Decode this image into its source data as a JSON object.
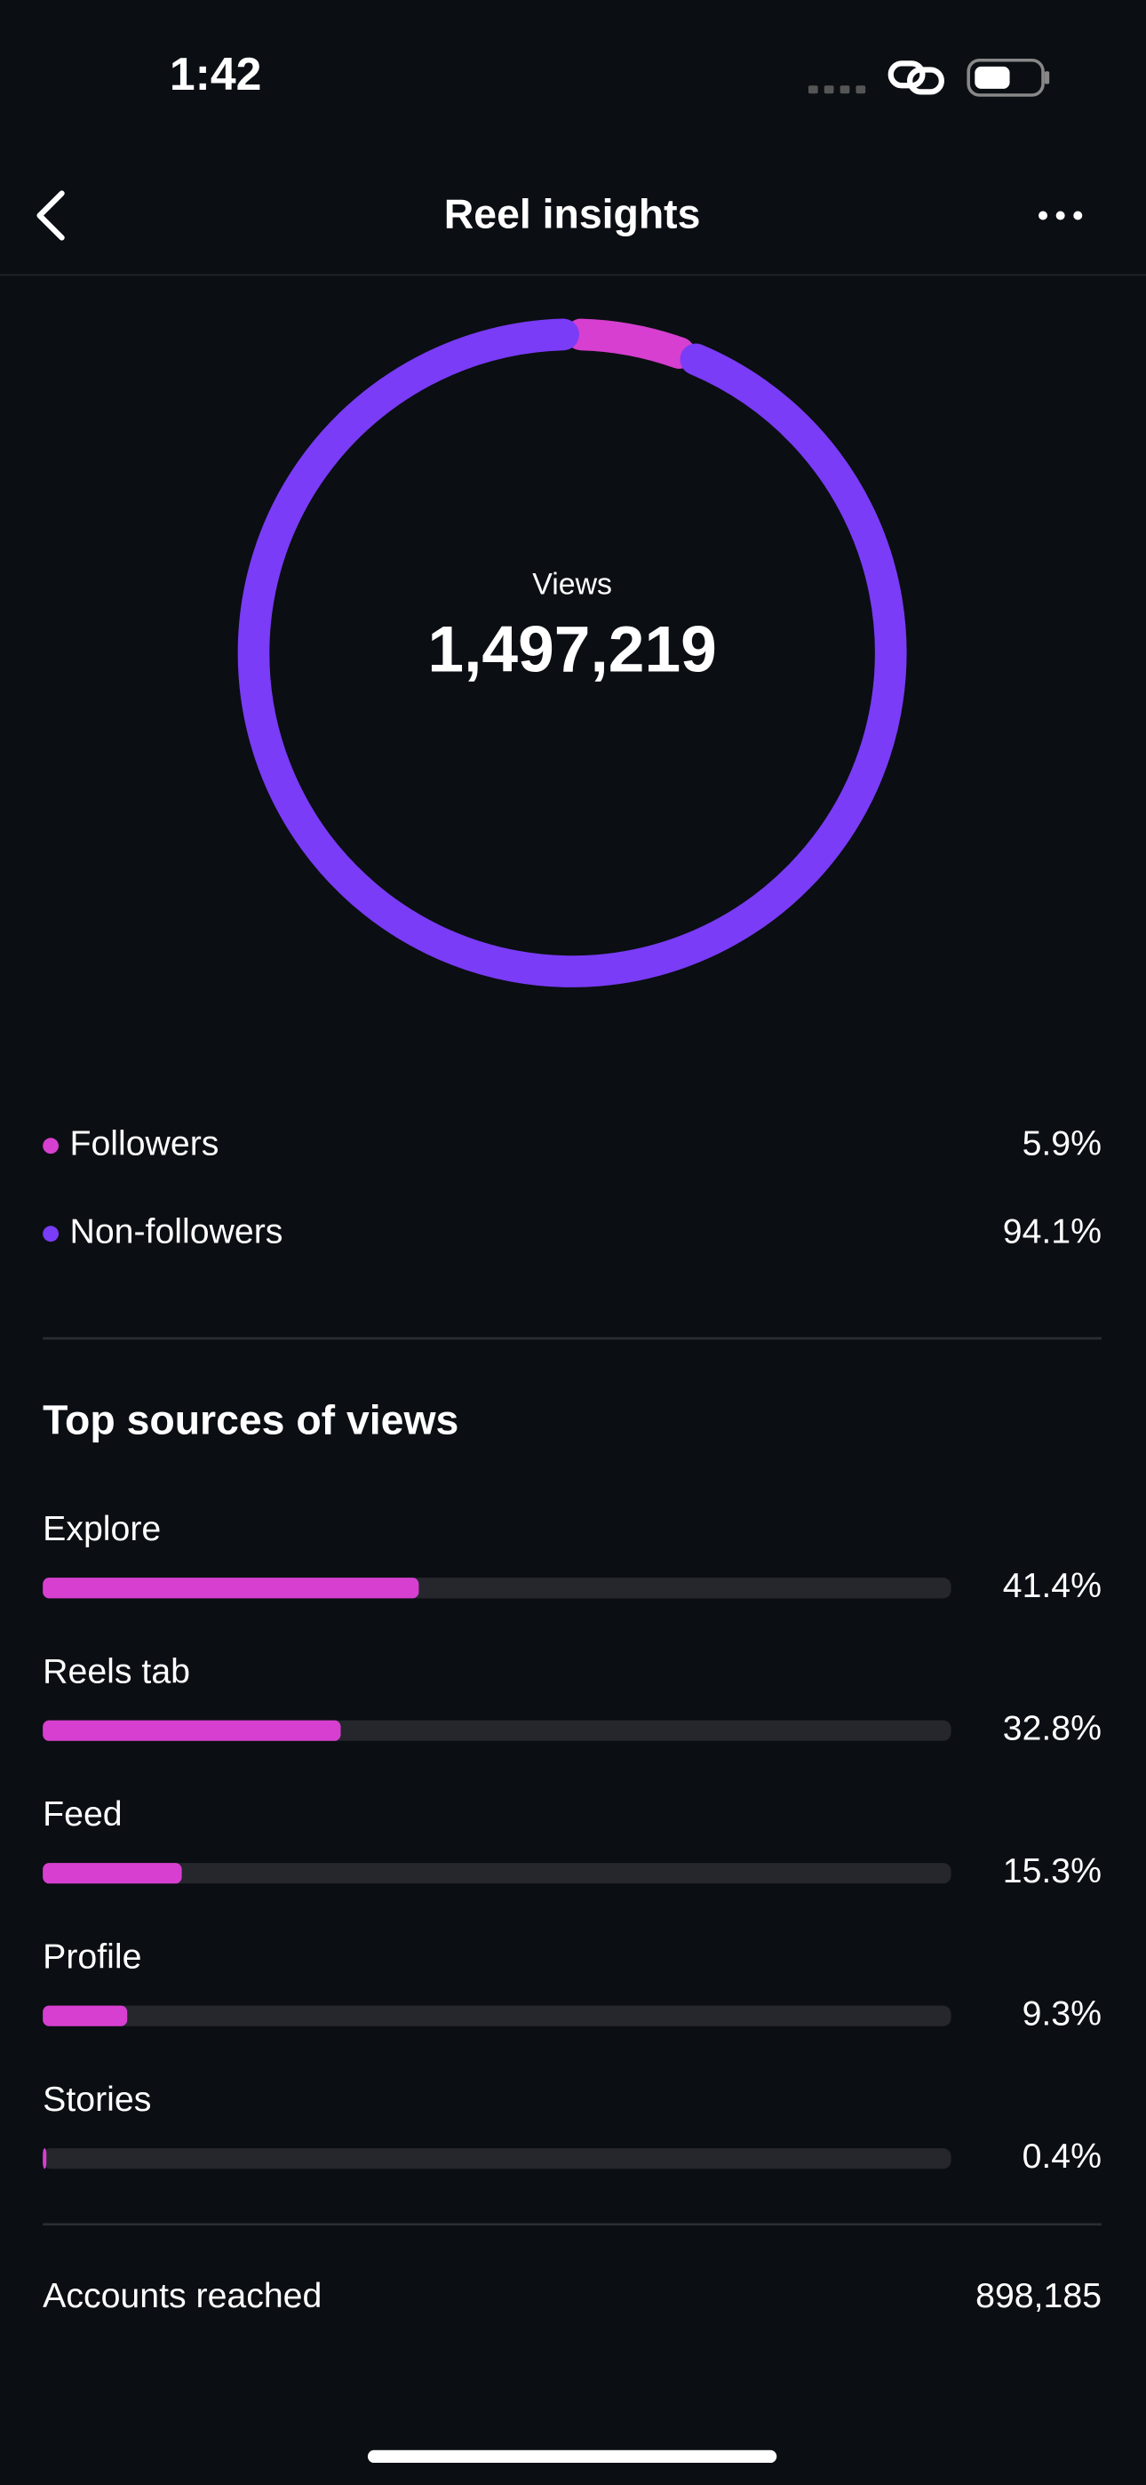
{
  "status_bar": {
    "time": "1:42"
  },
  "header": {
    "title": "Reel insights"
  },
  "views": {
    "label": "Views",
    "total": "1,497,219",
    "segments": [
      {
        "label": "Followers",
        "value": 5.9,
        "value_label": "5.9%",
        "color": "#d63fd0"
      },
      {
        "label": "Non-followers",
        "value": 94.1,
        "value_label": "94.1%",
        "color": "#7a3cf7"
      }
    ]
  },
  "sources": {
    "title": "Top sources of views",
    "color": "#d63fd0",
    "items": [
      {
        "label": "Explore",
        "value": 41.4,
        "value_label": "41.4%"
      },
      {
        "label": "Reels tab",
        "value": 32.8,
        "value_label": "32.8%"
      },
      {
        "label": "Feed",
        "value": 15.3,
        "value_label": "15.3%"
      },
      {
        "label": "Profile",
        "value": 9.3,
        "value_label": "9.3%"
      },
      {
        "label": "Stories",
        "value": 0.4,
        "value_label": "0.4%"
      }
    ]
  },
  "accounts_reached": {
    "label": "Accounts reached",
    "value": "898,185"
  }
}
